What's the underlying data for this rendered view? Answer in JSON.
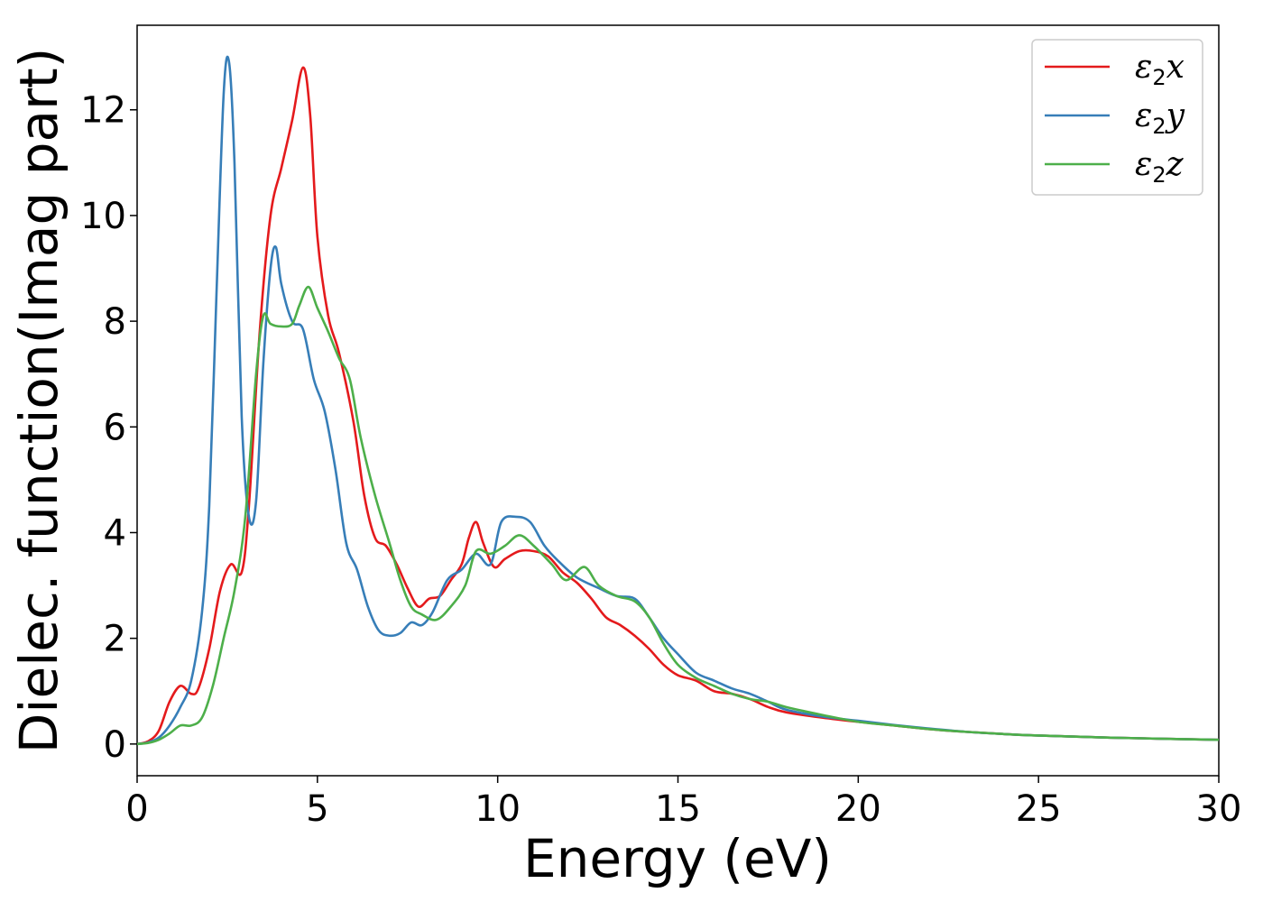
{
  "chart_data": {
    "type": "line",
    "xlabel": "Energy (eV)",
    "ylabel": "Dielec. function(Imag part)",
    "xlim": [
      0,
      30
    ],
    "ylim": [
      -0.6,
      13.6
    ],
    "xticks": [
      0,
      5,
      10,
      15,
      20,
      25,
      30
    ],
    "yticks": [
      0,
      2,
      4,
      6,
      8,
      10,
      12
    ],
    "grid": false,
    "legend_position": "top-right",
    "series": [
      {
        "name": "ε2x",
        "legend_base": "ε",
        "legend_sub": "2",
        "legend_tail": "x",
        "color": "#e41a1c",
        "points": [
          [
            0,
            0
          ],
          [
            0.3,
            0.05
          ],
          [
            0.6,
            0.25
          ],
          [
            0.9,
            0.8
          ],
          [
            1.2,
            1.1
          ],
          [
            1.5,
            0.95
          ],
          [
            1.7,
            1.05
          ],
          [
            2.0,
            1.8
          ],
          [
            2.3,
            2.9
          ],
          [
            2.6,
            3.4
          ],
          [
            2.9,
            3.25
          ],
          [
            3.1,
            4.5
          ],
          [
            3.4,
            7.8
          ],
          [
            3.7,
            10.0
          ],
          [
            4.0,
            10.9
          ],
          [
            4.3,
            11.8
          ],
          [
            4.6,
            12.8
          ],
          [
            4.8,
            11.9
          ],
          [
            5.0,
            9.6
          ],
          [
            5.3,
            8.1
          ],
          [
            5.6,
            7.4
          ],
          [
            6.0,
            6.1
          ],
          [
            6.3,
            4.7
          ],
          [
            6.6,
            3.9
          ],
          [
            6.9,
            3.75
          ],
          [
            7.2,
            3.4
          ],
          [
            7.5,
            2.95
          ],
          [
            7.8,
            2.6
          ],
          [
            8.1,
            2.75
          ],
          [
            8.4,
            2.8
          ],
          [
            8.7,
            3.1
          ],
          [
            9.0,
            3.4
          ],
          [
            9.2,
            3.9
          ],
          [
            9.4,
            4.2
          ],
          [
            9.6,
            3.8
          ],
          [
            9.9,
            3.35
          ],
          [
            10.2,
            3.5
          ],
          [
            10.6,
            3.65
          ],
          [
            11.0,
            3.65
          ],
          [
            11.4,
            3.55
          ],
          [
            11.8,
            3.25
          ],
          [
            12.2,
            3.05
          ],
          [
            12.6,
            2.75
          ],
          [
            13.0,
            2.4
          ],
          [
            13.4,
            2.25
          ],
          [
            13.8,
            2.05
          ],
          [
            14.2,
            1.8
          ],
          [
            14.6,
            1.5
          ],
          [
            15.0,
            1.3
          ],
          [
            15.5,
            1.2
          ],
          [
            16.0,
            1.0
          ],
          [
            16.5,
            0.95
          ],
          [
            17.0,
            0.85
          ],
          [
            17.5,
            0.7
          ],
          [
            18.0,
            0.6
          ],
          [
            19.0,
            0.5
          ],
          [
            20.0,
            0.42
          ],
          [
            21.0,
            0.35
          ],
          [
            22.0,
            0.28
          ],
          [
            23.0,
            0.23
          ],
          [
            24.0,
            0.19
          ],
          [
            25.0,
            0.16
          ],
          [
            27.0,
            0.12
          ],
          [
            30.0,
            0.08
          ]
        ]
      },
      {
        "name": "ε2y",
        "legend_base": "ε",
        "legend_sub": "2",
        "legend_tail": "y",
        "color": "#377eb8",
        "points": [
          [
            0,
            0
          ],
          [
            0.3,
            0.03
          ],
          [
            0.6,
            0.12
          ],
          [
            0.9,
            0.35
          ],
          [
            1.2,
            0.7
          ],
          [
            1.5,
            1.2
          ],
          [
            1.8,
            2.5
          ],
          [
            2.0,
            4.5
          ],
          [
            2.2,
            8.5
          ],
          [
            2.4,
            12.3
          ],
          [
            2.55,
            12.9
          ],
          [
            2.7,
            11.0
          ],
          [
            2.9,
            6.2
          ],
          [
            3.1,
            4.3
          ],
          [
            3.3,
            4.6
          ],
          [
            3.5,
            7.2
          ],
          [
            3.7,
            9.0
          ],
          [
            3.85,
            9.4
          ],
          [
            4.0,
            8.7
          ],
          [
            4.3,
            8.0
          ],
          [
            4.6,
            7.85
          ],
          [
            4.9,
            6.9
          ],
          [
            5.2,
            6.3
          ],
          [
            5.5,
            5.2
          ],
          [
            5.8,
            3.8
          ],
          [
            6.1,
            3.3
          ],
          [
            6.4,
            2.6
          ],
          [
            6.7,
            2.15
          ],
          [
            7.0,
            2.05
          ],
          [
            7.3,
            2.1
          ],
          [
            7.6,
            2.3
          ],
          [
            7.9,
            2.25
          ],
          [
            8.2,
            2.5
          ],
          [
            8.6,
            3.1
          ],
          [
            9.0,
            3.3
          ],
          [
            9.4,
            3.6
          ],
          [
            9.8,
            3.4
          ],
          [
            10.1,
            4.2
          ],
          [
            10.5,
            4.3
          ],
          [
            10.9,
            4.2
          ],
          [
            11.3,
            3.75
          ],
          [
            11.7,
            3.45
          ],
          [
            12.2,
            3.15
          ],
          [
            12.8,
            2.95
          ],
          [
            13.3,
            2.8
          ],
          [
            13.8,
            2.75
          ],
          [
            14.2,
            2.4
          ],
          [
            14.6,
            2.0
          ],
          [
            15.0,
            1.7
          ],
          [
            15.5,
            1.35
          ],
          [
            16.0,
            1.2
          ],
          [
            16.5,
            1.05
          ],
          [
            17.0,
            0.95
          ],
          [
            17.5,
            0.8
          ],
          [
            18.0,
            0.65
          ],
          [
            19.0,
            0.52
          ],
          [
            20.0,
            0.44
          ],
          [
            21.0,
            0.36
          ],
          [
            22.0,
            0.29
          ],
          [
            23.0,
            0.23
          ],
          [
            24.0,
            0.19
          ],
          [
            25.0,
            0.16
          ],
          [
            27.0,
            0.12
          ],
          [
            30.0,
            0.08
          ]
        ]
      },
      {
        "name": "ε2z",
        "legend_base": "ε",
        "legend_sub": "2",
        "legend_tail": "z",
        "color": "#4daf4a",
        "points": [
          [
            0,
            0
          ],
          [
            0.3,
            0.02
          ],
          [
            0.6,
            0.08
          ],
          [
            0.9,
            0.2
          ],
          [
            1.2,
            0.35
          ],
          [
            1.5,
            0.35
          ],
          [
            1.8,
            0.5
          ],
          [
            2.1,
            1.1
          ],
          [
            2.4,
            2.0
          ],
          [
            2.7,
            2.9
          ],
          [
            3.0,
            4.3
          ],
          [
            3.3,
            7.0
          ],
          [
            3.5,
            8.1
          ],
          [
            3.7,
            7.95
          ],
          [
            4.0,
            7.9
          ],
          [
            4.3,
            7.95
          ],
          [
            4.5,
            8.3
          ],
          [
            4.75,
            8.65
          ],
          [
            5.0,
            8.25
          ],
          [
            5.3,
            7.8
          ],
          [
            5.6,
            7.3
          ],
          [
            5.9,
            6.9
          ],
          [
            6.2,
            5.8
          ],
          [
            6.6,
            4.7
          ],
          [
            7.0,
            3.8
          ],
          [
            7.3,
            3.1
          ],
          [
            7.6,
            2.6
          ],
          [
            7.9,
            2.45
          ],
          [
            8.3,
            2.35
          ],
          [
            8.7,
            2.6
          ],
          [
            9.1,
            3.0
          ],
          [
            9.4,
            3.65
          ],
          [
            9.8,
            3.6
          ],
          [
            10.2,
            3.75
          ],
          [
            10.6,
            3.95
          ],
          [
            11.0,
            3.75
          ],
          [
            11.5,
            3.4
          ],
          [
            11.9,
            3.1
          ],
          [
            12.4,
            3.35
          ],
          [
            12.8,
            3.0
          ],
          [
            13.3,
            2.8
          ],
          [
            13.8,
            2.7
          ],
          [
            14.2,
            2.4
          ],
          [
            14.6,
            1.9
          ],
          [
            15.0,
            1.5
          ],
          [
            15.5,
            1.25
          ],
          [
            16.0,
            1.1
          ],
          [
            16.5,
            0.95
          ],
          [
            17.0,
            0.85
          ],
          [
            17.5,
            0.8
          ],
          [
            18.0,
            0.7
          ],
          [
            19.0,
            0.55
          ],
          [
            20.0,
            0.42
          ],
          [
            21.0,
            0.35
          ],
          [
            22.0,
            0.28
          ],
          [
            23.0,
            0.23
          ],
          [
            24.0,
            0.19
          ],
          [
            25.0,
            0.16
          ],
          [
            27.0,
            0.12
          ],
          [
            30.0,
            0.08
          ]
        ]
      }
    ]
  }
}
